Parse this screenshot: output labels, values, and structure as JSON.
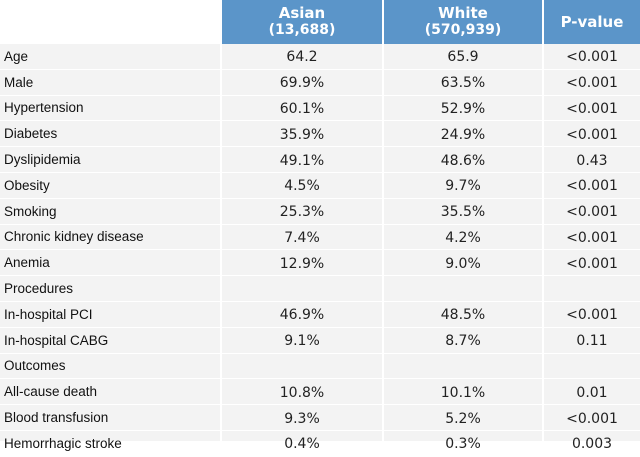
{
  "header": {
    "col1": {
      "title": "Asian",
      "count": "(13,688)"
    },
    "col2": {
      "title": "White",
      "count": "(570,939)"
    },
    "col3": {
      "title": "P-value"
    }
  },
  "rows": [
    {
      "label": "Age",
      "asian": "64.2",
      "white": "65.9",
      "p": "<0.001"
    },
    {
      "label": "Male",
      "asian": "69.9%",
      "white": "63.5%",
      "p": "<0.001"
    },
    {
      "label": "Hypertension",
      "asian": "60.1%",
      "white": "52.9%",
      "p": "<0.001"
    },
    {
      "label": "Diabetes",
      "asian": "35.9%",
      "white": "24.9%",
      "p": "<0.001"
    },
    {
      "label": "Dyslipidemia",
      "asian": "49.1%",
      "white": "48.6%",
      "p": "0.43"
    },
    {
      "label": "Obesity",
      "asian": "4.5%",
      "white": "9.7%",
      "p": "<0.001"
    },
    {
      "label": "Smoking",
      "asian": "25.3%",
      "white": "35.5%",
      "p": "<0.001"
    },
    {
      "label": "Chronic kidney disease",
      "asian": "7.4%",
      "white": "4.2%",
      "p": "<0.001"
    },
    {
      "label": "Anemia",
      "asian": "12.9%",
      "white": "9.0%",
      "p": "<0.001"
    },
    {
      "label": "Procedures",
      "asian": "",
      "white": "",
      "p": ""
    },
    {
      "label": "In-hospital PCI",
      "asian": "46.9%",
      "white": "48.5%",
      "p": "<0.001"
    },
    {
      "label": "In-hospital CABG",
      "asian": "9.1%",
      "white": "8.7%",
      "p": "0.11"
    },
    {
      "label": "Outcomes",
      "asian": "",
      "white": "",
      "p": ""
    },
    {
      "label": "All-cause death",
      "asian": "10.8%",
      "white": "10.1%",
      "p": "0.01"
    },
    {
      "label": "Blood transfusion",
      "asian": "9.3%",
      "white": "5.2%",
      "p": "<0.001"
    },
    {
      "label": "Hemorrhagic stroke",
      "asian": "0.4%",
      "white": "0.3%",
      "p": "0.003"
    }
  ]
}
